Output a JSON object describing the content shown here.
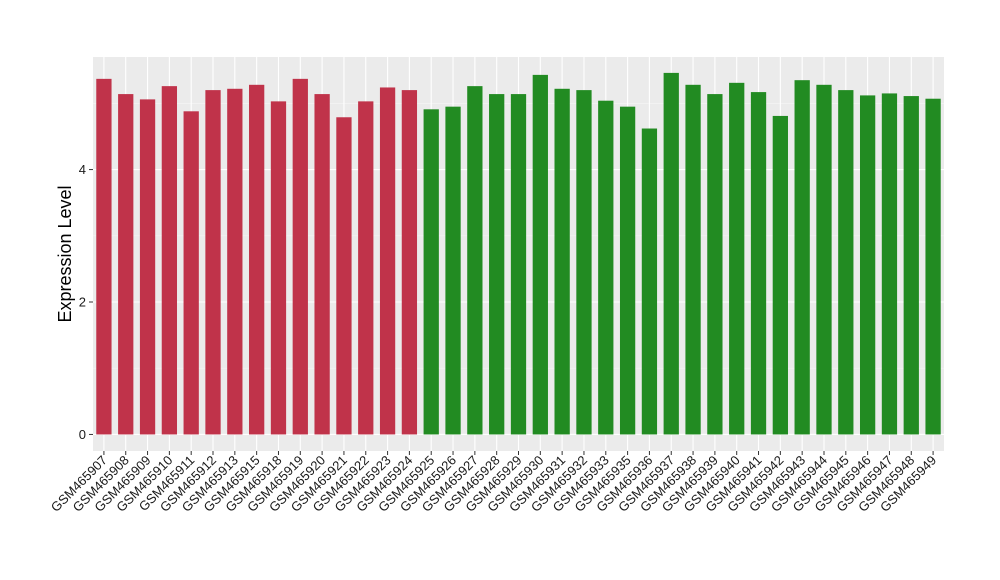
{
  "chart_data": {
    "type": "bar",
    "ylabel": "Expression Level",
    "xlabel": "",
    "title": "",
    "ylim": [
      -0.25,
      5.7
    ],
    "yticks": [
      0,
      2,
      4
    ],
    "grid": true,
    "legend": "none",
    "colors": {
      "panel": "#ebebeb",
      "grid_major": "#ffffff",
      "grid_minor": "#f5f5f5",
      "group_a": "#c0334a",
      "group_b": "#228b22",
      "tick_color": "#333333"
    },
    "categories": [
      "GSM465907",
      "GSM465908",
      "GSM465909",
      "GSM465910",
      "GSM465911",
      "GSM465912",
      "GSM465913",
      "GSM465915",
      "GSM465918",
      "GSM465919",
      "GSM465920",
      "GSM465921",
      "GSM465922",
      "GSM465923",
      "GSM465924",
      "GSM465925",
      "GSM465926",
      "GSM465927",
      "GSM465928",
      "GSM465929",
      "GSM465930",
      "GSM465931",
      "GSM465932",
      "GSM465933",
      "GSM465935",
      "GSM465936",
      "GSM465937",
      "GSM465938",
      "GSM465939",
      "GSM465940",
      "GSM465941",
      "GSM465942",
      "GSM465943",
      "GSM465944",
      "GSM465945",
      "GSM465946",
      "GSM465947",
      "GSM465948",
      "GSM465949"
    ],
    "values": [
      5.37,
      5.14,
      5.06,
      5.26,
      4.88,
      5.2,
      5.22,
      5.28,
      5.03,
      5.37,
      5.14,
      4.79,
      5.03,
      5.24,
      5.2,
      4.91,
      4.95,
      5.26,
      5.14,
      5.14,
      5.43,
      5.22,
      5.2,
      5.04,
      4.95,
      4.62,
      5.46,
      5.28,
      5.14,
      5.31,
      5.17,
      4.81,
      5.35,
      5.28,
      5.2,
      5.12,
      5.15,
      5.11,
      5.07
    ],
    "groups": [
      "a",
      "a",
      "a",
      "a",
      "a",
      "a",
      "a",
      "a",
      "a",
      "a",
      "a",
      "a",
      "a",
      "a",
      "a",
      "b",
      "b",
      "b",
      "b",
      "b",
      "b",
      "b",
      "b",
      "b",
      "b",
      "b",
      "b",
      "b",
      "b",
      "b",
      "b",
      "b",
      "b",
      "b",
      "b",
      "b",
      "b",
      "b",
      "b"
    ]
  }
}
